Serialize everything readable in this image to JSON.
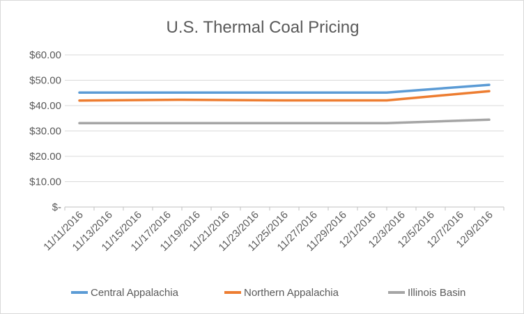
{
  "chart_data": {
    "type": "line",
    "title": "U.S. Thermal Coal Pricing",
    "xlabel": "",
    "ylabel": "",
    "ylim": [
      0,
      60
    ],
    "y_ticks": [
      "$-",
      "$10.00",
      "$20.00",
      "$30.00",
      "$40.00",
      "$50.00",
      "$60.00"
    ],
    "y_tick_values": [
      0,
      10,
      20,
      30,
      40,
      50,
      60
    ],
    "x_ticks": [
      "11/11/2016",
      "11/13/2016",
      "11/15/2016",
      "11/17/2016",
      "11/19/2016",
      "11/21/2016",
      "11/23/2016",
      "11/25/2016",
      "11/27/2016",
      "11/29/2016",
      "12/1/2016",
      "12/3/2016",
      "12/5/2016",
      "12/7/2016",
      "12/9/2016"
    ],
    "x_tick_days": [
      0,
      2,
      4,
      6,
      8,
      10,
      12,
      14,
      16,
      18,
      20,
      22,
      24,
      26,
      28
    ],
    "grid": true,
    "legend": "bottom",
    "series": [
      {
        "name": "Central Appalachia",
        "color": "#5b9bd5",
        "x": [
          0,
          21,
          28
        ],
        "values": [
          45.15,
          45.15,
          48.2
        ]
      },
      {
        "name": "Northern Appalachia",
        "color": "#ed7d31",
        "x": [
          0,
          7,
          14,
          21,
          28
        ],
        "values": [
          42.0,
          42.3,
          42.05,
          42.05,
          45.7
        ]
      },
      {
        "name": "Illinois Basin",
        "color": "#a5a5a5",
        "x": [
          0,
          21,
          28
        ],
        "values": [
          33.1,
          33.1,
          34.45
        ]
      }
    ]
  }
}
